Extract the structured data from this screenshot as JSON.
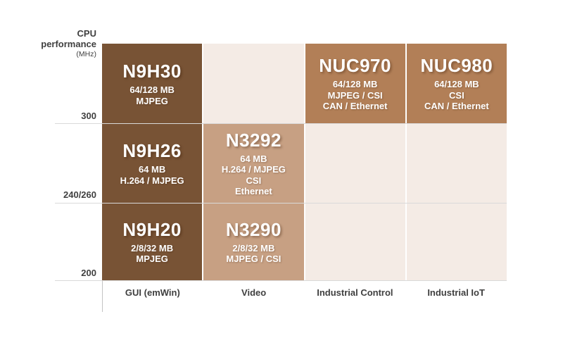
{
  "y_axis": {
    "title_lines": [
      "CPU",
      "performance",
      "(MHz)"
    ],
    "ticks": [
      "300",
      "240/260",
      "200"
    ]
  },
  "x_axis": {
    "labels": [
      "GUI (emWin)",
      "Video",
      "Industrial Control",
      "Industrial IoT"
    ]
  },
  "colors": {
    "dark_brown": "#785335",
    "tan": "#c7a083",
    "medium_brown": "#b27f57",
    "light_cell": "#f4ebe5",
    "gridline": "#d9d9d9",
    "axis_text": "#3f3f3f"
  },
  "cells": [
    {
      "name": "N9H30",
      "lines": [
        "64/128 MB",
        "MJPEG"
      ]
    },
    {
      "name": "",
      "lines": []
    },
    {
      "name": "NUC970",
      "lines": [
        "64/128 MB",
        "MJPEG / CSI",
        "CAN / Ethernet"
      ]
    },
    {
      "name": "NUC980",
      "lines": [
        "64/128 MB",
        "CSI",
        "CAN / Ethernet"
      ]
    },
    {
      "name": "N9H26",
      "lines": [
        "64 MB",
        "H.264 / MJPEG"
      ]
    },
    {
      "name": "N3292",
      "lines": [
        "64 MB",
        "H.264 / MJPEG",
        "CSI",
        "Ethernet"
      ]
    },
    {
      "name": "",
      "lines": []
    },
    {
      "name": "",
      "lines": []
    },
    {
      "name": "N9H20",
      "lines": [
        "2/8/32 MB",
        "MPJEG"
      ]
    },
    {
      "name": "N3290",
      "lines": [
        "2/8/32 MB",
        "MJPEG / CSI"
      ]
    },
    {
      "name": "",
      "lines": []
    },
    {
      "name": "",
      "lines": []
    }
  ],
  "chart_data": {
    "type": "table",
    "title": "",
    "ylabel": "CPU performance (MHz)",
    "y_bands": [
      "300",
      "240/260",
      "200"
    ],
    "columns": [
      "GUI (emWin)",
      "Video",
      "Industrial Control",
      "Industrial IoT"
    ],
    "rows": [
      {
        "cpu_mhz": "300",
        "cells": [
          "N9H30 — 64/128 MB, MJPEG",
          "",
          "NUC970 — 64/128 MB, MJPEG / CSI, CAN / Ethernet",
          "NUC980 — 64/128 MB, CSI, CAN / Ethernet"
        ]
      },
      {
        "cpu_mhz": "240/260",
        "cells": [
          "N9H26 — 64 MB, H.264 / MJPEG",
          "N3292 — 64 MB, H.264 / MJPEG, CSI, Ethernet",
          "",
          ""
        ]
      },
      {
        "cpu_mhz": "200",
        "cells": [
          "N9H20 — 2/8/32 MB, MPJEG",
          "N3290 — 2/8/32 MB, MJPEG / CSI",
          "",
          ""
        ]
      }
    ],
    "legend_position": "none",
    "grid": true
  }
}
